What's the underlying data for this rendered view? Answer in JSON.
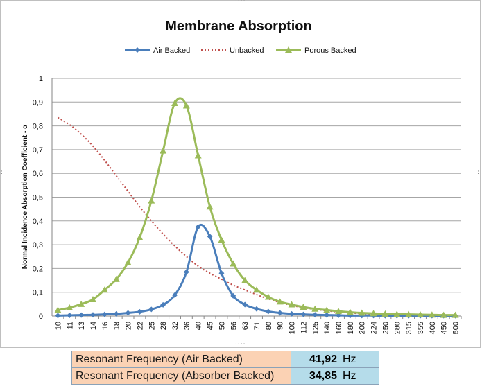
{
  "chart_data": {
    "type": "line",
    "title": "Membrane Absorption",
    "ylabel": "Normal Incidence Absorption Coefficient - α",
    "xlabel": "",
    "categories": [
      "10",
      "11",
      "13",
      "14",
      "16",
      "18",
      "20",
      "22",
      "25",
      "28",
      "32",
      "36",
      "40",
      "45",
      "50",
      "56",
      "63",
      "71",
      "80",
      "90",
      "100",
      "112",
      "125",
      "140",
      "160",
      "180",
      "200",
      "224",
      "250",
      "280",
      "315",
      "355",
      "400",
      "450",
      "500"
    ],
    "ylim": [
      0,
      1
    ],
    "yticks": [
      "0",
      "0,1",
      "0,2",
      "0,3",
      "0,4",
      "0,5",
      "0,6",
      "0,7",
      "0,8",
      "0,9",
      "1"
    ],
    "grid": true,
    "legend_position": "top",
    "series": [
      {
        "name": "Air Backed",
        "color": "#4a7ebb",
        "style": "solid",
        "marker": "diamond",
        "values": [
          0.002,
          0.003,
          0.004,
          0.005,
          0.007,
          0.009,
          0.013,
          0.018,
          0.028,
          0.047,
          0.088,
          0.185,
          0.375,
          0.335,
          0.18,
          0.085,
          0.048,
          0.03,
          0.019,
          0.013,
          0.009,
          0.007,
          0.005,
          0.004,
          0.003,
          0.002,
          0.002,
          0.002,
          0.001,
          0.001,
          0.001,
          0.001,
          0.001,
          0.001,
          0.001
        ]
      },
      {
        "name": "Unbacked",
        "color": "#c0504d",
        "style": "dotted",
        "marker": "none",
        "values": [
          0.835,
          0.805,
          0.765,
          0.715,
          0.655,
          0.59,
          0.525,
          0.46,
          0.4,
          0.345,
          0.295,
          0.25,
          0.21,
          0.18,
          0.155,
          0.13,
          0.11,
          0.09,
          0.072,
          0.057,
          0.045,
          0.035,
          0.028,
          0.022,
          0.017,
          0.013,
          0.01,
          0.008,
          0.006,
          0.005,
          0.004,
          0.003,
          0.003,
          0.002,
          0.002
        ]
      },
      {
        "name": "Porous Backed",
        "color": "#9bbb59",
        "style": "solid",
        "marker": "triangle",
        "values": [
          0.025,
          0.035,
          0.05,
          0.07,
          0.11,
          0.155,
          0.225,
          0.33,
          0.485,
          0.695,
          0.895,
          0.885,
          0.675,
          0.46,
          0.32,
          0.22,
          0.15,
          0.11,
          0.08,
          0.06,
          0.048,
          0.038,
          0.03,
          0.025,
          0.02,
          0.016,
          0.013,
          0.011,
          0.009,
          0.008,
          0.007,
          0.006,
          0.005,
          0.004,
          0.004
        ]
      }
    ]
  },
  "results": [
    {
      "label": "Resonant Frequency (Air Backed)",
      "value": "41,92",
      "unit": "Hz"
    },
    {
      "label": "Resonant Frequency (Absorber Backed)",
      "value": "34,85",
      "unit": "Hz"
    }
  ]
}
